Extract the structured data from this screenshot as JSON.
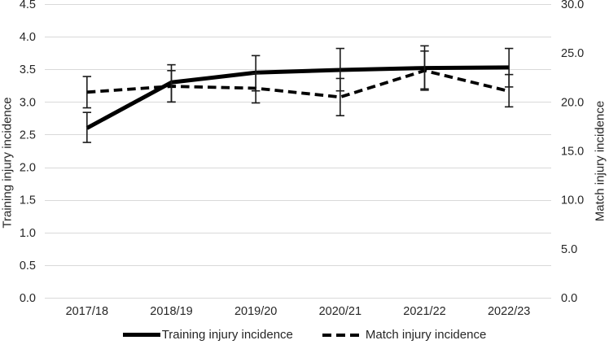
{
  "chart_data": {
    "type": "line",
    "title": "",
    "categories": [
      "2017/18",
      "2018/19",
      "2019/20",
      "2020/21",
      "2021/22",
      "2022/23"
    ],
    "left_axis": {
      "title": "Training injury incidence",
      "min": 0,
      "max": 4.5,
      "tick_step": 0.5,
      "tick_labels": [
        "0.0",
        "0.5",
        "1.0",
        "1.5",
        "2.0",
        "2.5",
        "3.0",
        "3.5",
        "4.0",
        "4.5"
      ]
    },
    "right_axis": {
      "title": "Match injury incidence",
      "min": 0,
      "max": 30,
      "tick_step": 5,
      "tick_labels": [
        "0.0",
        "5.0",
        "10.0",
        "15.0",
        "20.0",
        "25.0",
        "30.0"
      ]
    },
    "series": [
      {
        "name": "Training injury incidence",
        "axis": "left",
        "style": "solid",
        "color": "#000000",
        "values": [
          2.6,
          3.3,
          3.45,
          3.49,
          3.52,
          3.53
        ],
        "error_low": [
          2.38,
          3.0,
          3.17,
          3.17,
          3.2,
          3.23
        ],
        "error_high": [
          2.84,
          3.57,
          3.71,
          3.82,
          3.86,
          3.82
        ]
      },
      {
        "name": "Match injury incidence",
        "axis": "right",
        "style": "dashed",
        "color": "#000000",
        "values": [
          21.0,
          21.6,
          21.4,
          20.5,
          23.2,
          21.1
        ],
        "error_low": [
          19.4,
          20.0,
          19.9,
          18.6,
          21.2,
          19.5
        ],
        "error_high": [
          22.6,
          23.2,
          22.9,
          22.4,
          25.2,
          22.8
        ]
      }
    ],
    "grid": true,
    "gridline_color": "#D9D9D9",
    "error_bar_color": "#1a1a1a",
    "text_color": "#262626",
    "legend_position": "bottom"
  }
}
